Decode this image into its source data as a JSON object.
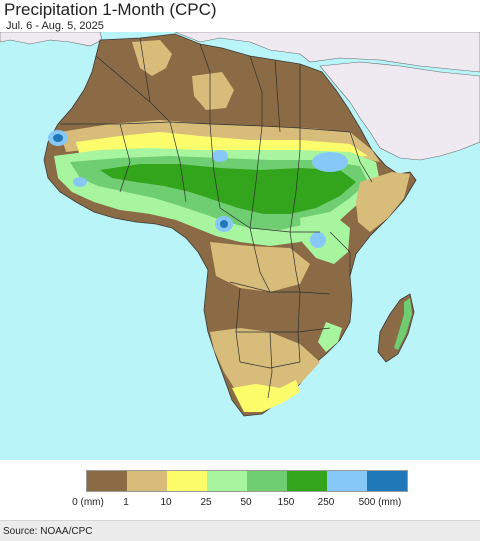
{
  "title": "Precipitation 1-Month (CPC)",
  "subtitle": "Jul. 6 - Aug. 5, 2025",
  "source": "Source: NOAA/CPC",
  "legend": {
    "unit_label": "0 (mm)",
    "labels": [
      "0 (mm)",
      "1",
      "10",
      "25",
      "50",
      "150",
      "250",
      "500 (mm)"
    ],
    "colors": [
      "#8b6b45",
      "#d8bd7a",
      "#fdfd6c",
      "#a8f59f",
      "#6fcd72",
      "#33a51c",
      "#86c8f7",
      "#2178b8"
    ]
  },
  "colors": {
    "ocean": "#b8f4f8",
    "outside": "#efe9f1",
    "dry": "#8b6b45",
    "very_light": "#d8bd7a",
    "light": "#fdfd6c",
    "moderate": "#a8f59f",
    "mod_heavy": "#6fcd72",
    "heavy": "#33a51c",
    "very_heavy": "#86c8f7",
    "extreme": "#2178b8"
  }
}
